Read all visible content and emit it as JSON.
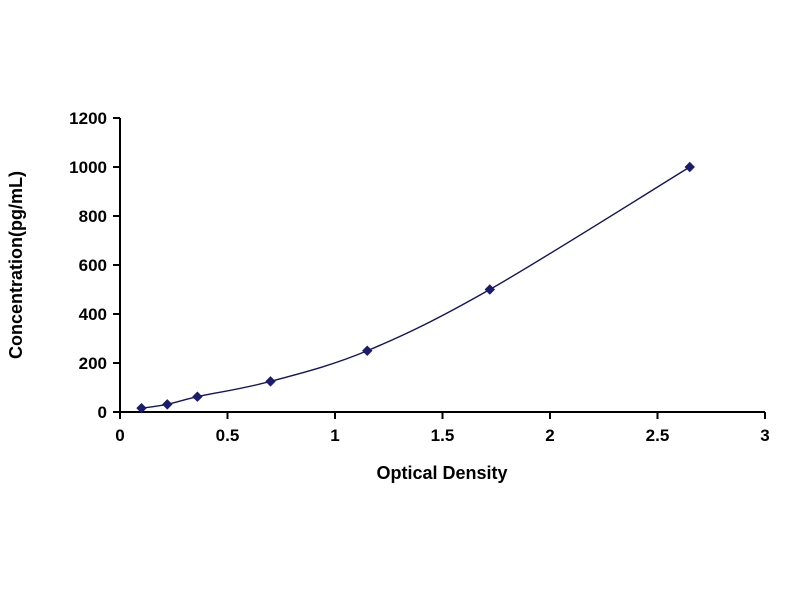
{
  "chart_data": {
    "type": "line",
    "title": "",
    "xlabel": "Optical Density",
    "ylabel": "Concentration(pg/mL)",
    "x": [
      0.1,
      0.22,
      0.36,
      0.7,
      1.15,
      1.72,
      2.65
    ],
    "y": [
      15.6,
      31.2,
      62.5,
      125,
      250,
      500,
      1000
    ],
    "xlim": [
      0,
      3
    ],
    "ylim": [
      0,
      1200
    ],
    "xticks": [
      0,
      0.5,
      1,
      1.5,
      2,
      2.5,
      3
    ],
    "xtick_labels": [
      "0",
      "0.5",
      "1",
      "1.5",
      "2",
      "2.5",
      "3"
    ],
    "yticks": [
      0,
      200,
      400,
      600,
      800,
      1000,
      1200
    ],
    "ytick_labels": [
      "0",
      "200",
      "400",
      "600",
      "800",
      "1000",
      "1200"
    ],
    "marker": "diamond",
    "line_color": "#14145f",
    "marker_color": "#1c1c6e",
    "axis_color": "#000000",
    "background_color": "#ffffff",
    "grid": false,
    "legend_position": "none"
  }
}
